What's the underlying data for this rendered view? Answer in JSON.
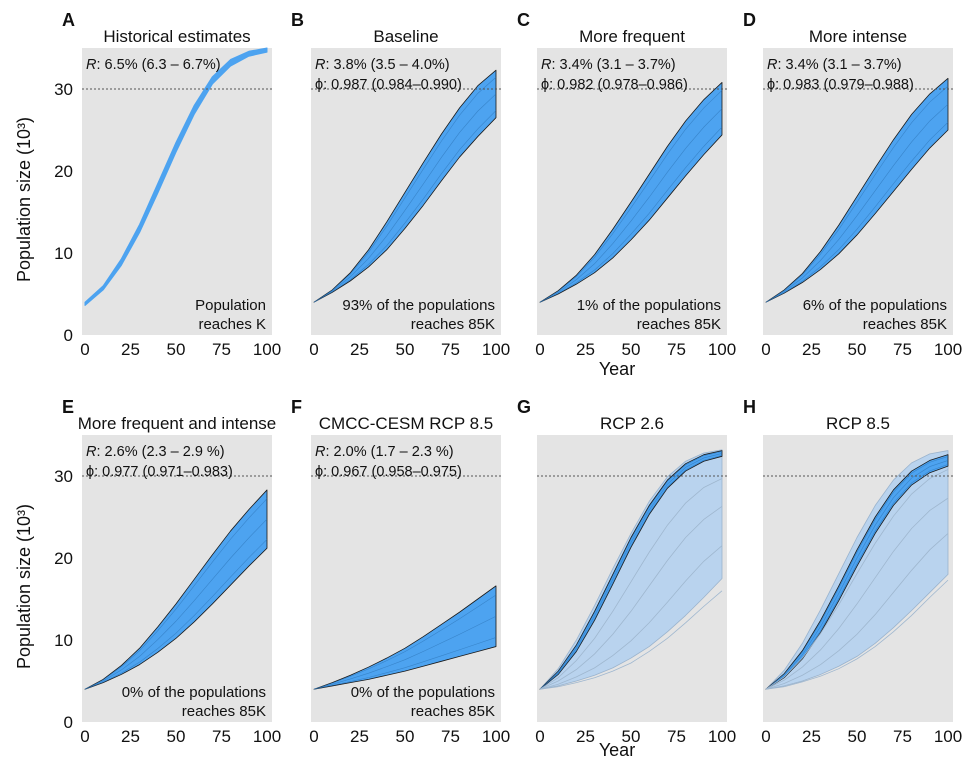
{
  "figure": {
    "y_axis_label": "Population size (10³)",
    "x_axis_label": "Year",
    "reference_line_y": 30,
    "colors": {
      "panel_bg": "#e4e4e4",
      "band_fill": "#4da3f0",
      "band_edge": "#1a1a1a",
      "light_band": "#b9d3ee",
      "light_edge": "#9ab3cd",
      "reference_line": "#555555"
    }
  },
  "chart_data": [
    {
      "id": "A",
      "type": "area",
      "letter": "A",
      "title": "Historical estimates",
      "param_lines": [
        {
          "symbol": "R",
          "text": ": 6.5% (6.3 – 6.7%)"
        }
      ],
      "note": [
        "Population",
        "reaches K"
      ],
      "xlim": [
        0,
        100
      ],
      "ylim": [
        0,
        35
      ],
      "y_ticks": [
        "0",
        "10",
        "20",
        "30"
      ],
      "x_ticks": [
        "0",
        "25",
        "50",
        "75",
        "100"
      ],
      "x": [
        0,
        10,
        20,
        30,
        40,
        50,
        60,
        70,
        80,
        90,
        100
      ],
      "series": [
        {
          "values_low": [
            3.6,
            5.5,
            8.5,
            12.5,
            17.3,
            22.3,
            26.9,
            30.6,
            32.8,
            34.0,
            34.5
          ],
          "values_high": [
            4.0,
            6.0,
            9.3,
            13.5,
            18.5,
            23.5,
            28.0,
            31.5,
            33.6,
            34.6,
            35.0
          ]
        }
      ],
      "lines": []
    },
    {
      "id": "B",
      "type": "area",
      "letter": "B",
      "title": "Baseline",
      "param_lines": [
        {
          "symbol": "R",
          "text": ": 3.8% (3.5 – 4.0%)"
        },
        {
          "symbol": "ϕ",
          "text": ": 0.987 (0.984–0.990)"
        }
      ],
      "note": [
        "93% of the populations",
        "reaches 85K"
      ],
      "xlim": [
        0,
        100
      ],
      "ylim": [
        0,
        35
      ],
      "y_ticks": [],
      "x_ticks": [
        "0",
        "25",
        "50",
        "75",
        "100"
      ],
      "x": [
        0,
        10,
        20,
        30,
        40,
        50,
        60,
        70,
        80,
        90,
        100
      ],
      "series": [
        {
          "values_low": [
            4.0,
            5.2,
            6.6,
            8.3,
            10.4,
            13.0,
            15.8,
            18.8,
            21.7,
            24.2,
            26.5
          ],
          "values_high": [
            4.0,
            5.5,
            7.6,
            10.4,
            13.8,
            17.4,
            21.0,
            24.5,
            27.7,
            30.4,
            32.3
          ]
        }
      ],
      "lines": []
    },
    {
      "id": "C",
      "type": "area",
      "letter": "C",
      "title": "More frequent",
      "param_lines": [
        {
          "symbol": "R",
          "text": ": 3.4% (3.1 – 3.7%)"
        },
        {
          "symbol": "ϕ",
          "text": ": 0.982 (0.978–0.986)"
        }
      ],
      "note": [
        "1% of the populations",
        "reaches 85K"
      ],
      "xlim": [
        0,
        100
      ],
      "ylim": [
        0,
        35
      ],
      "y_ticks": [],
      "x_ticks": [
        "0",
        "25",
        "50",
        "75",
        "100"
      ],
      "x": [
        0,
        10,
        20,
        30,
        40,
        50,
        60,
        70,
        80,
        90,
        100
      ],
      "series": [
        {
          "values_low": [
            4.0,
            5.0,
            6.2,
            7.6,
            9.4,
            11.6,
            14.0,
            16.7,
            19.4,
            22.0,
            24.4
          ],
          "values_high": [
            4.0,
            5.4,
            7.3,
            9.8,
            12.9,
            16.2,
            19.6,
            23.0,
            26.1,
            28.7,
            30.8
          ]
        }
      ],
      "lines": []
    },
    {
      "id": "D",
      "type": "area",
      "letter": "D",
      "title": "More intense",
      "param_lines": [
        {
          "symbol": "R",
          "text": ": 3.4% (3.1 – 3.7%)"
        },
        {
          "symbol": "ϕ",
          "text": ": 0.983 (0.979–0.988)"
        }
      ],
      "note": [
        "6% of the populations",
        "reaches 85K"
      ],
      "xlim": [
        0,
        100
      ],
      "ylim": [
        0,
        35
      ],
      "y_ticks": [],
      "x_ticks": [
        "0",
        "25",
        "50",
        "75",
        "100"
      ],
      "x": [
        0,
        10,
        20,
        30,
        40,
        50,
        60,
        70,
        80,
        90,
        100
      ],
      "series": [
        {
          "values_low": [
            4.0,
            5.1,
            6.4,
            8.0,
            9.9,
            12.2,
            14.8,
            17.5,
            20.2,
            22.8,
            25.0
          ],
          "values_high": [
            4.0,
            5.5,
            7.5,
            10.2,
            13.4,
            16.9,
            20.4,
            23.8,
            26.9,
            29.4,
            31.3
          ]
        }
      ],
      "lines": []
    },
    {
      "id": "E",
      "type": "area",
      "letter": "E",
      "title": "More frequent and intense",
      "param_lines": [
        {
          "symbol": "R",
          "text": ": 2.6% (2.3 – 2.9 %)"
        },
        {
          "symbol": "ϕ",
          "text": ": 0.977 (0.971–0.983)"
        }
      ],
      "note": [
        "0% of the populations",
        "reaches 85K"
      ],
      "xlim": [
        0,
        100
      ],
      "ylim": [
        0,
        35
      ],
      "y_ticks": [
        "0",
        "10",
        "20",
        "30"
      ],
      "x_ticks": [
        "0",
        "25",
        "50",
        "75",
        "100"
      ],
      "x": [
        0,
        10,
        20,
        30,
        40,
        50,
        60,
        70,
        80,
        90,
        100
      ],
      "series": [
        {
          "values_low": [
            4.0,
            4.8,
            5.8,
            7.0,
            8.5,
            10.2,
            12.2,
            14.4,
            16.7,
            19.0,
            21.2
          ],
          "values_high": [
            4.0,
            5.2,
            6.9,
            9.0,
            11.6,
            14.4,
            17.4,
            20.4,
            23.3,
            25.9,
            28.3
          ]
        }
      ],
      "lines": []
    },
    {
      "id": "F",
      "type": "area",
      "letter": "F",
      "title": "CMCC-CESM RCP 8.5",
      "param_lines": [
        {
          "symbol": "R",
          "text": ": 2.0% (1.7 – 2.3 %)"
        },
        {
          "symbol": "ϕ",
          "text": ": 0.967 (0.958–0.975)"
        }
      ],
      "note": [
        "0% of the populations",
        "reaches 85K"
      ],
      "xlim": [
        0,
        100
      ],
      "ylim": [
        0,
        35
      ],
      "y_ticks": [],
      "x_ticks": [
        "0",
        "25",
        "50",
        "75",
        "100"
      ],
      "x": [
        0,
        10,
        20,
        30,
        40,
        50,
        60,
        70,
        80,
        90,
        100
      ],
      "series": [
        {
          "values_low": [
            4.0,
            4.4,
            4.8,
            5.2,
            5.7,
            6.2,
            6.8,
            7.4,
            8.0,
            8.6,
            9.2
          ],
          "values_high": [
            4.0,
            4.8,
            5.7,
            6.7,
            7.8,
            9.0,
            10.4,
            11.9,
            13.4,
            15.0,
            16.6
          ]
        }
      ],
      "lines": []
    },
    {
      "id": "G",
      "type": "area",
      "letter": "G",
      "title": "RCP 2.6",
      "param_lines": [],
      "note": [],
      "xlim": [
        0,
        100
      ],
      "ylim": [
        0,
        35
      ],
      "y_ticks": [],
      "x_ticks": [
        "0",
        "25",
        "50",
        "75",
        "100"
      ],
      "x": [
        0,
        10,
        20,
        30,
        40,
        50,
        60,
        70,
        80,
        90,
        100
      ],
      "series": [
        {
          "values_low": [
            4.0,
            4.4,
            5.0,
            5.7,
            6.6,
            7.8,
            9.2,
            11.0,
            13.0,
            15.2,
            17.5
          ],
          "values_high": [
            4.0,
            6.5,
            10.0,
            14.2,
            18.7,
            23.0,
            26.9,
            29.9,
            31.8,
            32.8,
            33.2
          ]
        },
        {
          "values_low": [
            4.0,
            5.8,
            8.6,
            12.4,
            16.8,
            21.3,
            25.3,
            28.5,
            30.6,
            31.8,
            32.4
          ],
          "values_high": [
            4.0,
            6.2,
            9.4,
            13.5,
            18.0,
            22.5,
            26.4,
            29.5,
            31.5,
            32.6,
            33.1
          ]
        }
      ],
      "lines": [
        {
          "values": [
            4.0,
            4.3,
            4.8,
            5.4,
            6.2,
            7.2,
            8.6,
            10.2,
            12.1,
            14.1,
            16.0
          ]
        },
        {
          "values": [
            4.0,
            4.6,
            5.5,
            6.6,
            8.1,
            9.9,
            12.1,
            14.6,
            17.2,
            19.6,
            21.5
          ]
        },
        {
          "values": [
            4.0,
            5.0,
            6.4,
            8.3,
            10.7,
            13.5,
            16.6,
            19.7,
            22.5,
            24.7,
            26.3
          ]
        },
        {
          "values": [
            4.0,
            5.4,
            7.5,
            10.2,
            13.5,
            17.1,
            20.7,
            24.0,
            26.7,
            28.6,
            29.7
          ]
        }
      ]
    },
    {
      "id": "H",
      "type": "area",
      "letter": "H",
      "title": "RCP 8.5",
      "param_lines": [],
      "note": [],
      "xlim": [
        0,
        100
      ],
      "ylim": [
        0,
        35
      ],
      "y_ticks": [],
      "x_ticks": [
        "0",
        "25",
        "50",
        "75",
        "100"
      ],
      "x": [
        0,
        10,
        20,
        30,
        40,
        50,
        60,
        70,
        80,
        90,
        100
      ],
      "series": [
        {
          "values_low": [
            4.0,
            4.4,
            5.0,
            5.8,
            6.8,
            8.0,
            9.6,
            11.5,
            13.6,
            15.8,
            18.0
          ],
          "values_high": [
            4.0,
            6.3,
            9.6,
            13.7,
            18.1,
            22.5,
            26.4,
            29.5,
            31.6,
            32.7,
            33.1
          ]
        },
        {
          "values_low": [
            4.0,
            5.4,
            7.7,
            10.9,
            14.8,
            19.0,
            23.0,
            26.4,
            28.9,
            30.4,
            31.2
          ],
          "values_high": [
            4.0,
            5.9,
            8.7,
            12.4,
            16.6,
            21.0,
            25.0,
            28.3,
            30.6,
            31.9,
            32.6
          ]
        }
      ],
      "lines": [
        {
          "values": [
            4.0,
            4.3,
            4.9,
            5.6,
            6.5,
            7.7,
            9.2,
            11.0,
            13.0,
            15.2,
            17.3
          ]
        },
        {
          "values": [
            4.0,
            4.7,
            5.7,
            7.0,
            8.7,
            10.7,
            13.1,
            15.8,
            18.5,
            21.0,
            23.0
          ]
        },
        {
          "values": [
            4.0,
            5.1,
            6.7,
            8.8,
            11.4,
            14.4,
            17.6,
            20.8,
            23.6,
            25.8,
            27.3
          ]
        },
        {
          "values": [
            4.0,
            5.5,
            7.8,
            10.8,
            14.3,
            18.1,
            21.8,
            25.1,
            27.8,
            29.7,
            30.8
          ]
        }
      ]
    }
  ]
}
